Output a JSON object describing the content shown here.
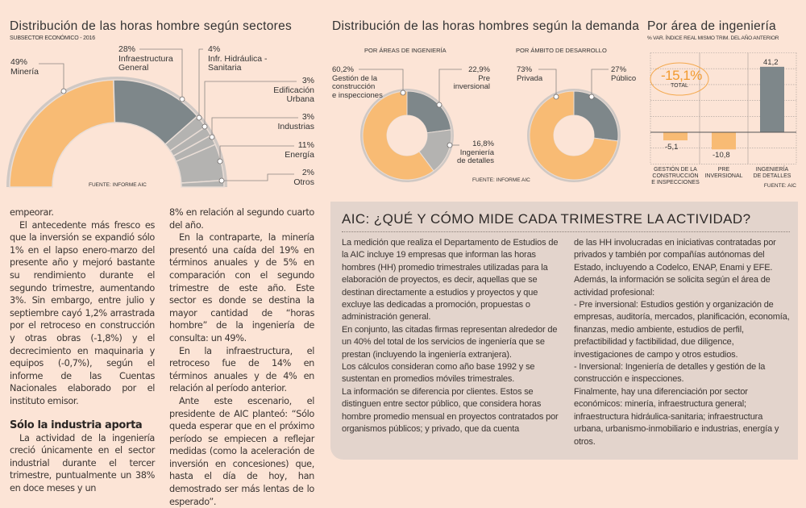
{
  "colors": {
    "background": "#fce4d6",
    "orange": "#f8bb74",
    "dark_gray": "#7e878a",
    "light_gray": "#b4b3b1",
    "box": "#e3d4cc"
  },
  "chart1": {
    "title": "Distribución de las horas hombre según sectores",
    "subtitle": "SUBSECTOR ECONÓMICO - 2016",
    "source": "FUENTE: INFORME AIC",
    "labels": [
      {
        "pct": "49%",
        "name1": "Minería",
        "name2": ""
      },
      {
        "pct": "28%",
        "name1": "Infraestructura",
        "name2": "General"
      },
      {
        "pct": "4%",
        "name1": "Infr. Hidráulica -",
        "name2": "Sanitaria"
      },
      {
        "pct": "3%",
        "name1": "Edificación",
        "name2": "Urbana"
      },
      {
        "pct": "3%",
        "name1": "Industrias",
        "name2": ""
      },
      {
        "pct": "11%",
        "name1": "Energía",
        "name2": ""
      },
      {
        "pct": "2%",
        "name1": "Otros",
        "name2": ""
      }
    ]
  },
  "chart2": {
    "title": "Distribución de las horas hombres según la demanda",
    "source": "FUENTE: INFORME AIC",
    "left": {
      "heading": "POR ÁREAS DE INGENIERÍA",
      "labels": [
        {
          "pct": "60,2%",
          "l1": "Gestión de la",
          "l2": "construcción",
          "l3": "e inspecciones"
        },
        {
          "pct": "22,9%",
          "l1": "Pre",
          "l2": "inversional"
        },
        {
          "pct": "16,8%",
          "l1": "Ingeniería",
          "l2": "de detalles"
        }
      ]
    },
    "right": {
      "heading": "POR ÁMBITO DE DESARROLLO",
      "labels": [
        {
          "pct": "73%",
          "l1": "Privada"
        },
        {
          "pct": "27%",
          "l1": "Público"
        }
      ]
    }
  },
  "chart3": {
    "title": "Por área de ingeniería",
    "subtitle": "% VAR. ÍNDICE REAL MISMO TRIM. DEL AÑO ANTERIOR",
    "total_value": "-15,1%",
    "total_label": "TOTAL",
    "value_labels": [
      "-5,1",
      "-10,8",
      "41,2"
    ],
    "categories": [
      [
        "GESTIÓN DE LA",
        "CONSTRUCCIÓN",
        "E INSPECCIONES"
      ],
      [
        "PRE",
        "INVERSIONAL"
      ],
      [
        "INGENIERÍA",
        "DE DETALLES"
      ]
    ],
    "source": "FUENTE: AIC"
  },
  "chart_data": [
    {
      "type": "pie",
      "title": "Distribución de las horas hombre según sectores",
      "subtitle": "SUBSECTOR ECONÓMICO - 2016",
      "categories": [
        "Minería",
        "Infraestructura General",
        "Infr. Hidráulica - Sanitaria",
        "Edificación Urbana",
        "Industrias",
        "Energía",
        "Otros"
      ],
      "values": [
        49,
        28,
        4,
        3,
        3,
        11,
        2
      ],
      "style": "half-donut"
    },
    {
      "type": "pie",
      "title": "Distribución de las horas hombres según la demanda - Por áreas de ingeniería",
      "categories": [
        "Pre inversional",
        "Ingeniería de detalles",
        "Gestión de la construcción e inspecciones"
      ],
      "values": [
        22.9,
        16.8,
        60.2
      ],
      "style": "donut"
    },
    {
      "type": "pie",
      "title": "Distribución de las horas hombres según la demanda - Por ámbito de desarrollo",
      "categories": [
        "Público",
        "Privada"
      ],
      "values": [
        27,
        73
      ],
      "style": "donut"
    },
    {
      "type": "bar",
      "title": "Por área de ingeniería",
      "subtitle": "% VAR. ÍNDICE REAL MISMO TRIM. DEL AÑO ANTERIOR",
      "categories": [
        "Gestión de la construcción e inspecciones",
        "Pre inversional",
        "Ingeniería de detalles"
      ],
      "values": [
        -5.1,
        -10.8,
        41.2
      ],
      "ylim": [
        -20,
        50
      ],
      "grid": true,
      "annotation": "-15,1% TOTAL"
    }
  ],
  "article": {
    "col1": [
      {
        "text": "empeorar.",
        "indent": false
      },
      {
        "text": "El antecedente más fresco es que la inversión se expandió sólo 1% en el lapso enero-marzo del presente año y mejoró bastante su rendimiento durante el segundo trimestre, aumentando 3%. Sin embargo, entre julio y septiembre cayó 1,2% arrastrada por el retroceso en construcción y otras obras (-1,8%) y el decrecimiento en maquinaria y equipos (-0,7%), según el informe de las Cuentas Nacionales elaborado por el instituto emisor.",
        "indent": true
      }
    ],
    "subhead": "Sólo la industria aporta",
    "col1b": "La actividad de la ingeniería creció únicamente en el sector industrial durante el tercer trimestre, puntualmente un 38% en doce meses y un",
    "col2": [
      "8% en relación al segundo cuarto del año.",
      "En la contraparte, la minería presentó una caída del 19% en términos anuales y de 5% en comparación con el segundo trimestre de este año. Este sector es donde se destina la mayor cantidad de “horas hombre” de la ingeniería de consulta: un 49%.",
      "En la infraestructura, el retroceso fue de 14% en términos anuales y de 4% en relación al período anterior.",
      "Ante este escenario, el presidente de AIC planteó: “Sólo queda esperar que en el próximo período se empiecen a reflejar medidas (como la aceleración de inversión en concesiones) que, hasta el día de hoy, han demostrado ser más lentas de lo esperado”."
    ]
  },
  "box": {
    "title": "AIC: ¿QUÉ Y CÓMO MIDE CADA TRIMESTRE LA ACTIVIDAD?",
    "left": [
      "La medición que realiza el Departamento de Estudios de la AIC incluye 19 empresas que informan las horas hombres (HH) promedio trimestrales utilizadas para la elaboración de proyectos, es decir, aquellas que se destinan directamente a estudios y proyectos y que excluye las dedicadas a promoción, propuestas o administración general.",
      "En conjunto, las citadas firmas representan alrededor de un 40% del total de los servicios de ingeniería que se prestan (incluyendo la ingeniería extranjera).",
      "Los cálculos consideran como año base 1992 y se sustentan en promedios móviles trimestrales.",
      "La información se diferencia por clientes. Estos se distinguen entre sector público, que considera horas hombre promedio mensual en proyectos contratados por organismos públicos; y privado, que da cuenta"
    ],
    "right": [
      "de las HH involucradas en iniciativas contratadas por privados y también por compañías autónomas del Estado, incluyendo a Codelco, ENAP, Enami y EFE.",
      "Además, la información se solicita según el área de actividad profesional:",
      "- Pre inversional: Estudios gestión y organización de empresas, auditoría, mercados, planificación, economía, finanzas, medio ambiente, estudios de perfil, prefactibilidad y factibilidad, due diligence, investigaciones de campo y otros estudios.",
      "- Inversional: Ingeniería de detalles y gestión de la construcción e inspecciones.",
      "Finalmente, hay una diferenciación por sector económicos: minería, infraestructura general; infraestructura hidráulica-sanitaria; infraestructura urbana, urbanismo-inmobiliario e industrias, energía y otros."
    ]
  }
}
